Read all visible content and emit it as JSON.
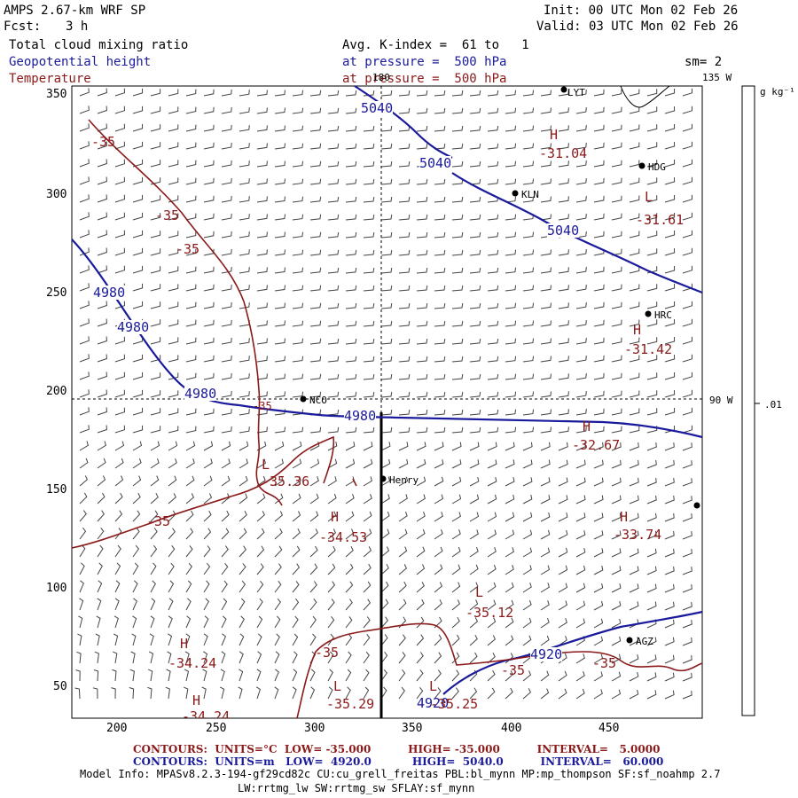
{
  "header": {
    "title": "AMPS 2.67-km WRF SP",
    "fcst_label": "Fcst:",
    "fcst_value": "3 h",
    "init": "Init: 00 UTC Mon 02 Feb 26",
    "valid": "Valid: 03 UTC Mon 02 Feb 26",
    "field1": "Total cloud mixing ratio",
    "field2": "Geopotential height",
    "field3": "Temperature",
    "avg": "Avg. K-index =  61 to   1",
    "pressure1": "at pressure =  500 hPa",
    "pressure2": "at pressure =  500 hPa",
    "sm": "sm= 2"
  },
  "colorbar": {
    "units": "g kg⁻¹",
    "tick": ".01"
  },
  "map": {
    "lon_180": "180",
    "lon_135w": "135 W",
    "lon_90w": "90 W",
    "x_ticks": [
      "200",
      "250",
      "300",
      "350",
      "400",
      "450"
    ],
    "y_ticks": [
      "350",
      "300",
      "250",
      "200",
      "150",
      "100",
      "50"
    ],
    "stations": [
      {
        "name": "KLN"
      },
      {
        "name": "HDG"
      },
      {
        "name": "HRC"
      },
      {
        "name": "NCO"
      },
      {
        "name": "Henry"
      },
      {
        "name": "AGZ"
      },
      {
        "name": "LYT"
      }
    ],
    "height_labels": [
      "5040",
      "5040",
      "5040",
      "4980",
      "4980",
      "4980",
      "4980",
      "4920",
      "4920"
    ],
    "temp_labels": [
      "-35",
      "-35",
      "-35",
      "-35",
      "-35",
      "-35",
      "-35",
      "-35"
    ],
    "highs_lows": [
      {
        "type": "H",
        "value": "-31.04"
      },
      {
        "type": "L",
        "value": "-31.61"
      },
      {
        "type": "H",
        "value": "-31.42"
      },
      {
        "type": "H",
        "value": "-32.67"
      },
      {
        "type": "L",
        "value": "-35.36"
      },
      {
        "type": "H",
        "value": "-34.53"
      },
      {
        "type": "H",
        "value": "-33.74"
      },
      {
        "type": "L",
        "value": "-35.12"
      },
      {
        "type": "H",
        "value": "-34.24"
      },
      {
        "type": "H",
        "value": "-34.24"
      },
      {
        "type": "L",
        "value": "-35.29"
      },
      {
        "type": "L",
        "value": "-35.25"
      }
    ]
  },
  "footer": {
    "red_line": "CONTOURS:  UNITS=°C  LOW= -35.000          HIGH= -35.000          INTERVAL=   5.0000",
    "blue_line": "CONTOURS:  UNITS=m   LOW=  4920.0           HIGH=  5040.0          INTERVAL=   60.000",
    "model1": "Model Info: MPASv8.2.3-194-gf29cd82c CU:cu_grell_freitas PBL:bl_mynn MP:mp_thompson SF:sf_noahmp 2.7",
    "model2": "LW:rrtmg_lw SW:rrtmg_sw SFLAY:sf_mynn"
  },
  "colors": {
    "height_contour": "#1a1a9c",
    "temp_contour": "#8b1a1a",
    "background": "#ffffff"
  }
}
